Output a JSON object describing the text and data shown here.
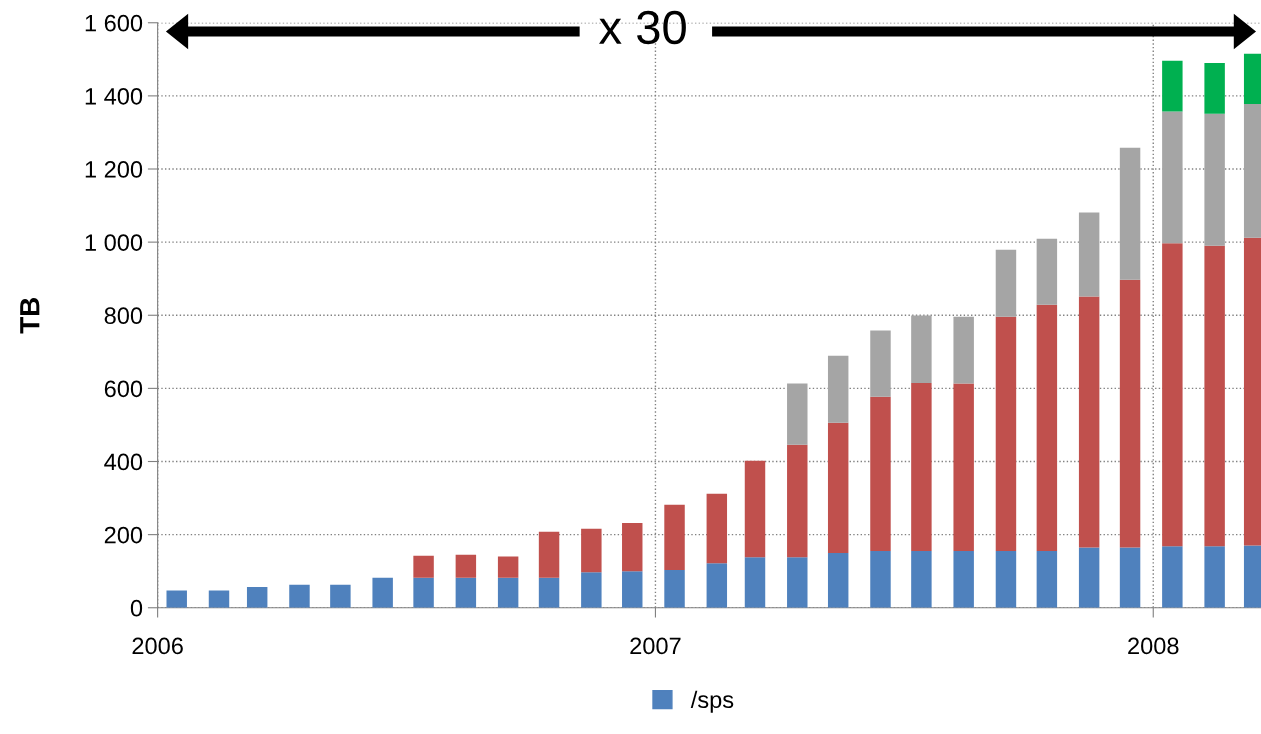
{
  "chart_data": {
    "type": "bar",
    "stacked": true,
    "ylabel": "TB",
    "annotations": [
      "x 30"
    ],
    "x": [
      "2006-01-15",
      "2006-02-15",
      "2006-03-15",
      "2006-04-15",
      "2006-05-15",
      "2006-06-15",
      "2006-07-15",
      "2006-08-15",
      "2006-09-15",
      "2006-10-15",
      "2006-11-15",
      "2006-12-15",
      "2007-01-15",
      "2007-02-15",
      "2007-03-15",
      "2007-04-15",
      "2007-05-15",
      "2007-06-15",
      "2007-07-15",
      "2007-08-15",
      "2007-09-15",
      "2007-10-15",
      "2007-11-15",
      "2007-12-15",
      "2008-01-15",
      "2008-02-15",
      "2008-03-15"
    ],
    "series": [
      {
        "name": "/sps",
        "color": "#4f81bd",
        "values": [
          47,
          47,
          57,
          63,
          63,
          82,
          82,
          82,
          82,
          82,
          97,
          100,
          103,
          122,
          138,
          138,
          150,
          155,
          155,
          155,
          155,
          155,
          165,
          165,
          168,
          168,
          170
        ]
      },
      {
        "color": "#c0504d",
        "values": [
          null,
          null,
          null,
          null,
          null,
          null,
          60,
          63,
          58,
          126,
          119,
          132,
          179,
          190,
          264,
          308,
          356,
          422,
          460,
          458,
          641,
          674,
          686,
          732,
          829,
          822,
          842
        ]
      },
      {
        "color": "#a5a5a5",
        "values": [
          null,
          null,
          null,
          null,
          null,
          null,
          null,
          null,
          null,
          null,
          null,
          null,
          null,
          null,
          null,
          167,
          183,
          181,
          184,
          183,
          183,
          180,
          230,
          361,
          360,
          361,
          366
        ]
      },
      {
        "color": "#00b050",
        "values": [
          null,
          null,
          null,
          null,
          null,
          null,
          null,
          null,
          null,
          null,
          null,
          null,
          null,
          null,
          null,
          null,
          null,
          null,
          null,
          null,
          null,
          null,
          null,
          null,
          139,
          139,
          137
        ]
      }
    ],
    "xlim": [
      "2006-01-01",
      "2008-03-20"
    ],
    "xticks": [
      {
        "value": "2006-01-01",
        "label": "2006"
      },
      {
        "value": "2007-01-01",
        "label": "2007"
      },
      {
        "value": "2008-01-01",
        "label": "2008"
      }
    ],
    "ylim": [
      0,
      1600
    ],
    "yticks": [
      0,
      200,
      400,
      600,
      800,
      {
        "value": 1000,
        "label": "1 000"
      },
      {
        "value": 1200,
        "label": "1 200"
      },
      {
        "value": 1400,
        "label": "1 400"
      },
      {
        "value": 1600,
        "label": "1 600"
      }
    ],
    "grid": true,
    "legend": "bottom"
  }
}
